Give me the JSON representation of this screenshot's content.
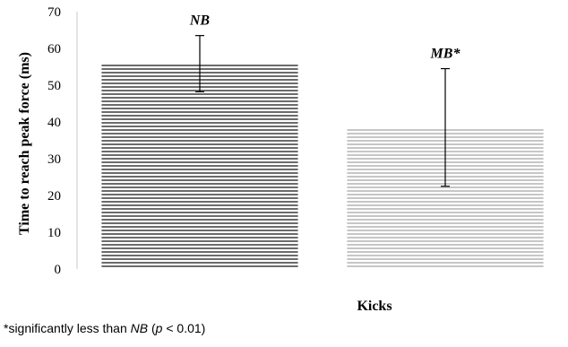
{
  "chart_data": {
    "type": "bar",
    "categories": [
      "NB",
      "MB*"
    ],
    "values": [
      55.8,
      38.5
    ],
    "error_high": [
      63.5,
      54.5
    ],
    "error_low": [
      48.2,
      22.5
    ],
    "bar_labels": [
      "NB",
      "MB*"
    ],
    "colors": [
      "#6b6b6b",
      "#c6c6c6"
    ],
    "xlabel": "Kicks",
    "ylabel": "Time to reach peak force (ms)",
    "ylim": [
      0,
      70
    ],
    "yticks": [
      "0",
      "10",
      "20",
      "30",
      "40",
      "50",
      "60",
      "70"
    ],
    "grid": false,
    "legend": "none"
  },
  "footnote": {
    "prefix": "*significantly less than ",
    "group": "NB",
    "mid": " (",
    "pvar": "p",
    "suffix": " < 0.01)"
  }
}
